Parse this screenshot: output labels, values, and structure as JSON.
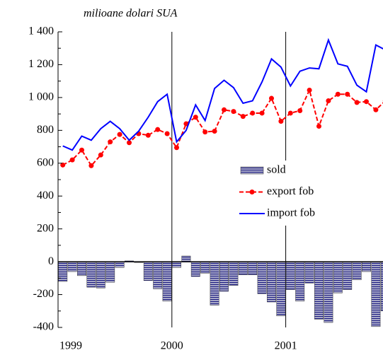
{
  "chart_data": {
    "type": "bar-line",
    "title": "milioane dolari SUA",
    "categories": [
      "1999",
      null,
      null,
      null,
      null,
      null,
      null,
      null,
      null,
      null,
      null,
      null,
      "2000",
      null,
      null,
      null,
      null,
      null,
      null,
      null,
      null,
      null,
      null,
      null,
      "2001",
      null,
      null,
      null,
      null,
      null,
      null,
      null,
      null,
      null,
      null
    ],
    "series": [
      {
        "name": "sold",
        "type": "bar",
        "color": "#a8a8c8",
        "values": [
          -120,
          -60,
          -85,
          -155,
          -160,
          -125,
          -35,
          5,
          -5,
          -115,
          -165,
          -240,
          -35,
          35,
          -90,
          -70,
          -265,
          -180,
          -145,
          -80,
          -80,
          -195,
          -245,
          -330,
          -170,
          -240,
          -130,
          -350,
          -370,
          -190,
          -170,
          -110,
          -60,
          -395,
          -300
        ]
      },
      {
        "name": "export fob",
        "type": "line",
        "color": "#ff0000",
        "values": [
          589,
          620,
          680,
          585,
          650,
          730,
          775,
          725,
          780,
          770,
          805,
          780,
          695,
          840,
          880,
          790,
          795,
          925,
          915,
          885,
          905,
          905,
          995,
          855,
          905,
          920,
          1045,
          825,
          980,
          1020,
          1020,
          970,
          975,
          925,
          980
        ]
      },
      {
        "name": "import fob",
        "type": "line",
        "color": "#0000ff",
        "values": [
          705,
          680,
          765,
          740,
          810,
          855,
          810,
          740,
          795,
          880,
          975,
          1020,
          730,
          800,
          955,
          860,
          1055,
          1105,
          1060,
          965,
          980,
          1095,
          1235,
          1185,
          1070,
          1160,
          1180,
          1175,
          1350,
          1205,
          1190,
          1075,
          1035,
          1320,
          1290
        ]
      }
    ],
    "ylim": [
      -400,
      1400
    ],
    "yticks": [
      -400,
      -200,
      0,
      200,
      400,
      600,
      800,
      {
        "value": 1000,
        "label": "1 000"
      },
      {
        "value": 1200,
        "label": "1 200"
      },
      {
        "value": 1400,
        "label": "1 400"
      }
    ]
  }
}
